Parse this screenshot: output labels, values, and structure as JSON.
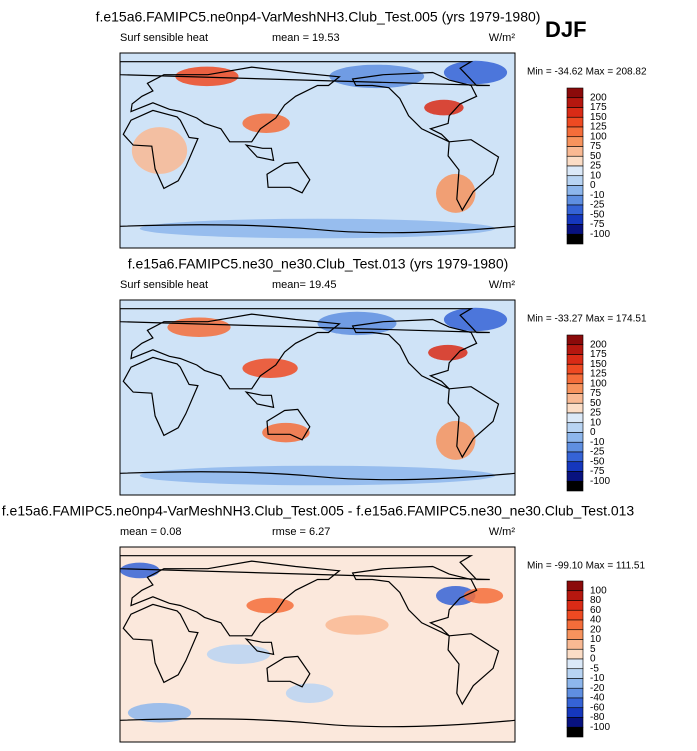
{
  "season": "DJF",
  "panels": [
    {
      "title": "f.e15a6.FAMIPC5.ne0np4-VarMeshNH3.Club_Test.005 (yrs 1979-1980)",
      "left": "Surf sensible heat",
      "middle": "mean =  19.53",
      "units": "W/m²",
      "minmax": "Min = -34.62 Max = 208.82",
      "colorbar": [
        "200",
        "175",
        "150",
        "125",
        "100",
        "75",
        "50",
        "25",
        "10",
        "0",
        "-10",
        "-25",
        "-50",
        "-75",
        "-100"
      ]
    },
    {
      "title": "f.e15a6.FAMIPC5.ne30_ne30.Club_Test.013 (yrs 1979-1980)",
      "left": "Surf sensible heat",
      "middle": "mean=  19.45",
      "units": "W/m²",
      "minmax": "Min = -33.27 Max = 174.51",
      "colorbar": [
        "200",
        "175",
        "150",
        "125",
        "100",
        "75",
        "50",
        "25",
        "10",
        "0",
        "-10",
        "-25",
        "-50",
        "-75",
        "-100"
      ]
    },
    {
      "title": "f.e15a6.FAMIPC5.ne0np4-VarMeshNH3.Club_Test.005 - f.e15a6.FAMIPC5.ne30_ne30.Club_Test.013",
      "left": "mean =  0.08",
      "middle": "rmse =  6.27",
      "units": "W/m²",
      "minmax": "Min = -99.10 Max = 111.51",
      "colorbar": [
        "100",
        "80",
        "60",
        "40",
        "20",
        "10",
        "5",
        "0",
        "-5",
        "-10",
        "-20",
        "-40",
        "-60",
        "-80",
        "-100"
      ]
    }
  ]
}
